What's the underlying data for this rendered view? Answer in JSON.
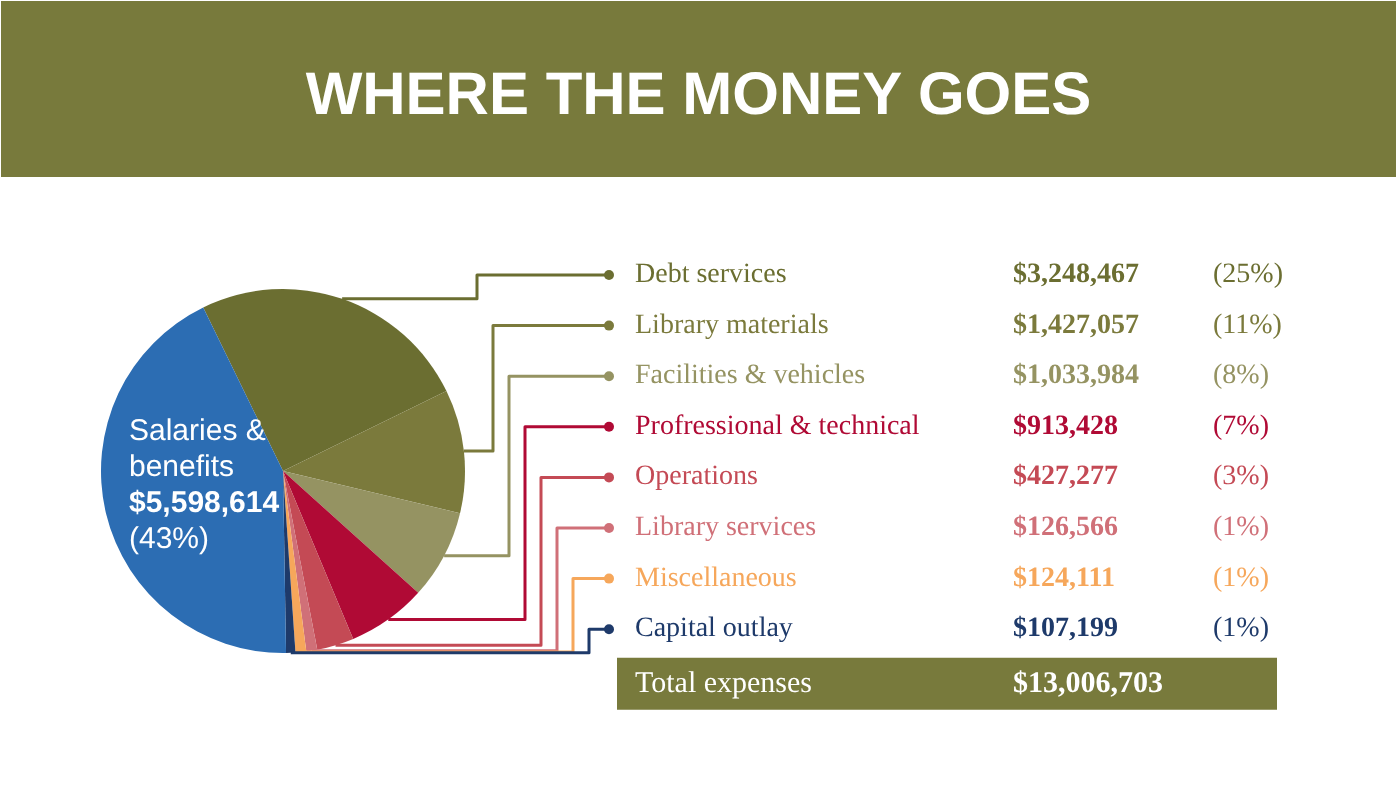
{
  "chart_data": {
    "type": "pie",
    "title": "WHERE THE MONEY GOES",
    "categories": [
      "Debt services",
      "Library materials",
      "Facilities & vehicles",
      "Profressional & technical",
      "Operations",
      "Library services",
      "Miscellaneous",
      "Capital outlay",
      "Salaries & benefits"
    ],
    "values": [
      3248467,
      1427057,
      1033984,
      913428,
      427277,
      126566,
      124111,
      107199,
      5598614
    ],
    "colors": [
      "#6b6e31",
      "#7b7a3c",
      "#959362",
      "#b00a35",
      "#c44a55",
      "#d07078",
      "#f6a75b",
      "#1e3a6a",
      "#2c6db3"
    ],
    "value_labels": [
      "$3,248,467 (25%)",
      "$1,427,057 (11%)",
      "$1,033,984 (8%)",
      "$913,428 (7%)",
      "$427,277 (3%)",
      "$126,566 (1%)",
      "$124,111 (1%)",
      "$107,199 (1%)",
      "$5,598,614 (43%)"
    ],
    "annotations": [
      "Total expenses",
      "$13,006,703"
    ],
    "legend": "right"
  }
}
